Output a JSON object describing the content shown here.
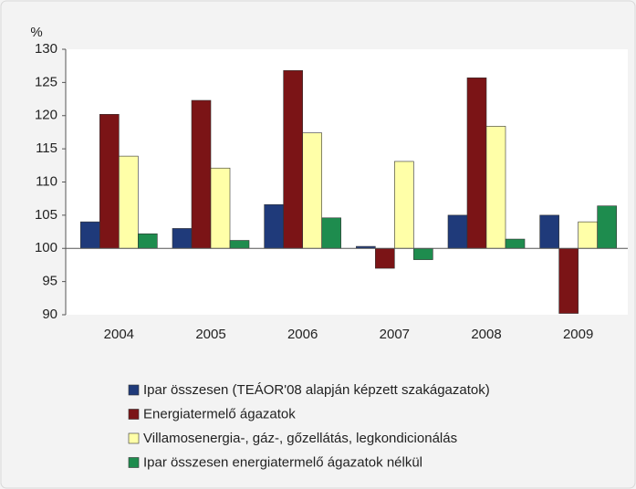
{
  "chart_data": {
    "type": "bar",
    "y_unit_label": "%",
    "categories": [
      "2004",
      "2005",
      "2006",
      "2007",
      "2008",
      "2009"
    ],
    "series": [
      {
        "name": "Ipar összesen (TEÁOR'08 alapján képzett szakágazatok)",
        "color": "#1f3a7a",
        "values": [
          104,
          103,
          106.6,
          100.3,
          105,
          105
        ]
      },
      {
        "name": "Energiatermelő ágazatok",
        "color": "#7b1416",
        "values": [
          120.2,
          122.3,
          126.8,
          97,
          125.7,
          90.2
        ]
      },
      {
        "name": "Villamosenergia-, gáz-, gőzellátás, legkondicionálás",
        "color": "#ffffa8",
        "values": [
          113.9,
          112.1,
          117.4,
          113.1,
          118.4,
          104
        ]
      },
      {
        "name": "Ipar összesen energiatermelő ágazatok nélkül",
        "color": "#1e8c4e",
        "values": [
          102.2,
          101.2,
          104.6,
          98.3,
          101.4,
          106.4
        ]
      }
    ],
    "ylim": [
      90,
      130
    ],
    "yticks": [
      90,
      95,
      100,
      105,
      110,
      115,
      120,
      125,
      130
    ],
    "x_axis_crosses": 100,
    "grid": false,
    "legend": "bottom"
  }
}
